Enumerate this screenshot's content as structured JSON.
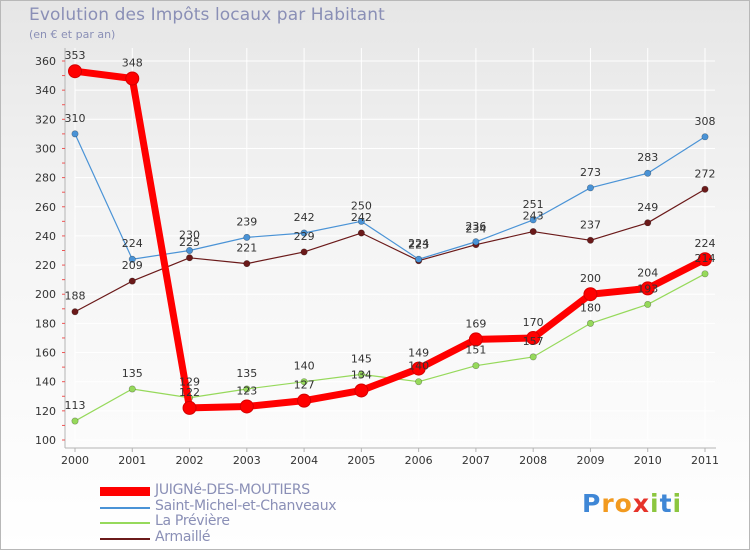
{
  "chart_data": {
    "type": "line",
    "title": "Evolution des Impôts locaux par Habitant",
    "subtitle": "(en € et par an)",
    "categories": [
      "2000",
      "2001",
      "2002",
      "2003",
      "2004",
      "2005",
      "2006",
      "2007",
      "2008",
      "2009",
      "2010",
      "2011"
    ],
    "ylim": [
      100,
      360
    ],
    "yticks": [
      100,
      120,
      140,
      160,
      180,
      200,
      220,
      240,
      260,
      280,
      300,
      320,
      340,
      360
    ],
    "grid": true,
    "legend_position": "bottom-left",
    "series": [
      {
        "name": "Armaillé",
        "color": "#6b1a1a",
        "values": [
          188,
          209,
          225,
          221,
          229,
          242,
          223,
          234,
          243,
          237,
          249,
          272
        ]
      },
      {
        "name": "La Prévière",
        "color": "#96d95b",
        "values": [
          113,
          135,
          129,
          135,
          140,
          145,
          140,
          151,
          157,
          180,
          193,
          214
        ]
      },
      {
        "name": "Saint-Michel-et-Chanveaux",
        "color": "#4a93d6",
        "values": [
          310,
          224,
          230,
          239,
          242,
          250,
          224,
          236,
          251,
          273,
          283,
          308
        ]
      },
      {
        "name": "JUIGNé-DES-MOUTIERS",
        "color": "#ff0000",
        "values": [
          353,
          348,
          122,
          123,
          127,
          134,
          149,
          169,
          170,
          200,
          204,
          224
        ]
      }
    ]
  },
  "legend_order": [
    "JUIGNé-DES-MOUTIERS",
    "Saint-Michel-et-Chanveaux",
    "La Prévière",
    "Armaillé"
  ],
  "logo": {
    "text": "Proxiti",
    "letters": [
      {
        "ch": "P",
        "color": "#3f87d6"
      },
      {
        "ch": "r",
        "color": "#f29a1f"
      },
      {
        "ch": "o",
        "color": "#f29a1f"
      },
      {
        "ch": "x",
        "color": "#e6332a"
      },
      {
        "ch": "i",
        "color": "#8cc63f"
      },
      {
        "ch": "t",
        "color": "#3f87d6"
      },
      {
        "ch": "i",
        "color": "#8cc63f"
      }
    ]
  }
}
